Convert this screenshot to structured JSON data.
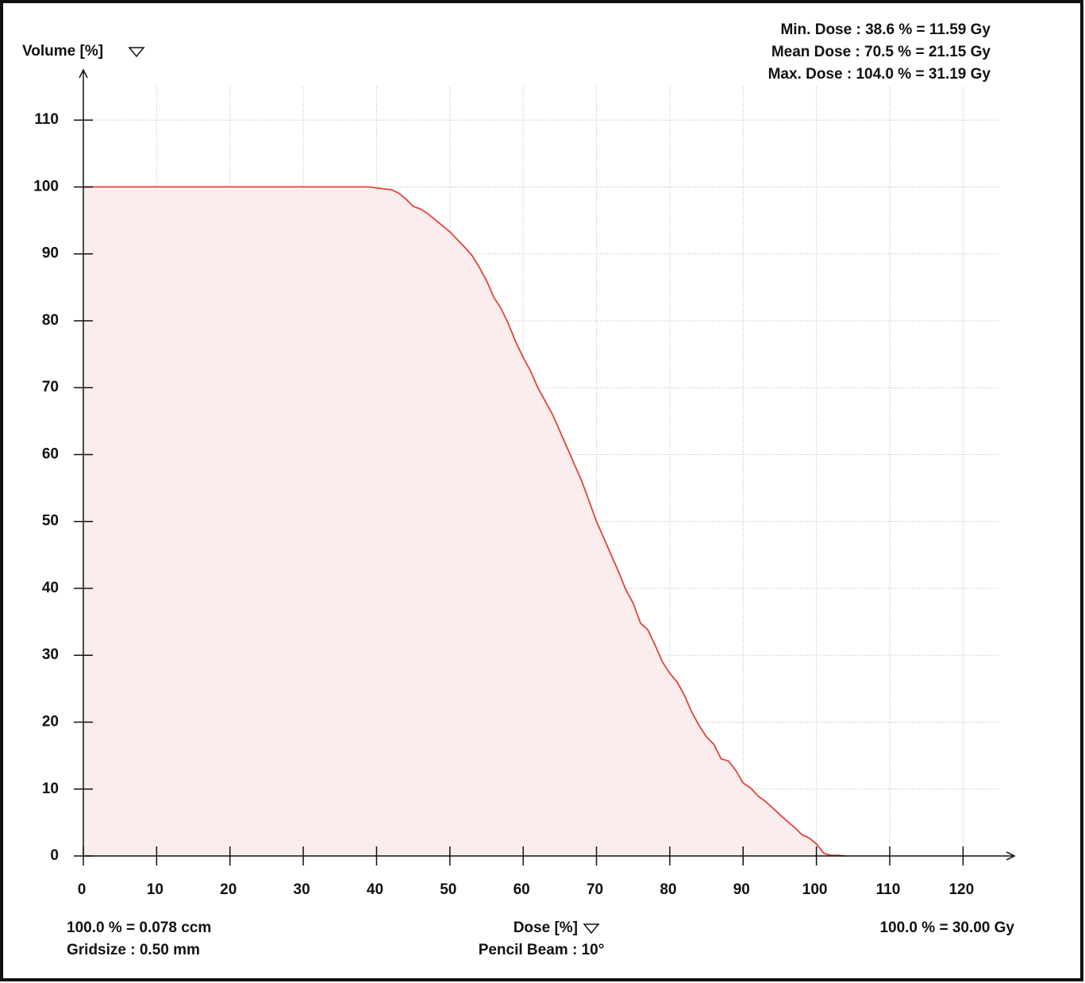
{
  "chart_data": {
    "type": "line",
    "ylabel": "Volume [%]",
    "xlabel": "Dose [%]",
    "xlabel_note": "Pencil Beam : 10°",
    "stats": [
      "Min. Dose : 38.6 % = 11.59 Gy",
      "Mean Dose : 70.5 % = 21.15 Gy",
      "Max. Dose : 104.0 % = 31.19 Gy"
    ],
    "footer_left": [
      "100.0 % = 0.078 ccm",
      "Gridsize :  0.50 mm"
    ],
    "footer_right": "100.0 % = 30.00 Gy",
    "x": [
      0,
      39,
      41,
      42,
      43,
      44,
      45,
      46,
      47,
      48,
      50,
      52,
      53,
      54,
      55,
      56,
      57,
      58,
      59,
      60,
      61,
      62,
      63,
      64,
      65,
      66,
      67,
      68,
      69,
      70,
      71,
      72,
      73,
      74,
      75,
      76,
      77,
      78,
      79,
      80,
      81,
      82,
      83,
      84,
      85,
      86,
      87,
      88,
      89,
      90,
      91,
      92,
      93,
      94,
      95,
      96,
      97,
      98,
      99,
      100,
      101,
      102,
      103,
      104
    ],
    "series": [
      {
        "color": "#e0443c",
        "fill": "#fbeded",
        "values": [
          100,
          100,
          99.7,
          99.6,
          99.1,
          98.2,
          97.1,
          96.7,
          96,
          95.1,
          93.3,
          91,
          89.8,
          88,
          86,
          83.5,
          81.8,
          79.5,
          76.8,
          74.5,
          72.5,
          70,
          68,
          66,
          63.5,
          61,
          58.5,
          56,
          53,
          50,
          47.5,
          45,
          42.5,
          39.8,
          37.8,
          34.8,
          33.8,
          31.5,
          29,
          27.3,
          26,
          24,
          21.5,
          19.5,
          17.8,
          16.7,
          14.5,
          14.2,
          12.8,
          10.9,
          10.2,
          9,
          8.2,
          7.2,
          6.2,
          5.2,
          4.3,
          3.2,
          2.7,
          1.8,
          0.4,
          0.1,
          0.1,
          0
        ]
      }
    ],
    "xlim": [
      0,
      127
    ],
    "ylim": [
      0,
      117.5
    ],
    "xticks": [
      0,
      10,
      20,
      30,
      40,
      50,
      60,
      70,
      80,
      90,
      100,
      110,
      120
    ],
    "yticks": [
      0,
      10,
      20,
      30,
      40,
      50,
      60,
      70,
      80,
      90,
      100,
      110
    ],
    "grid": true
  }
}
